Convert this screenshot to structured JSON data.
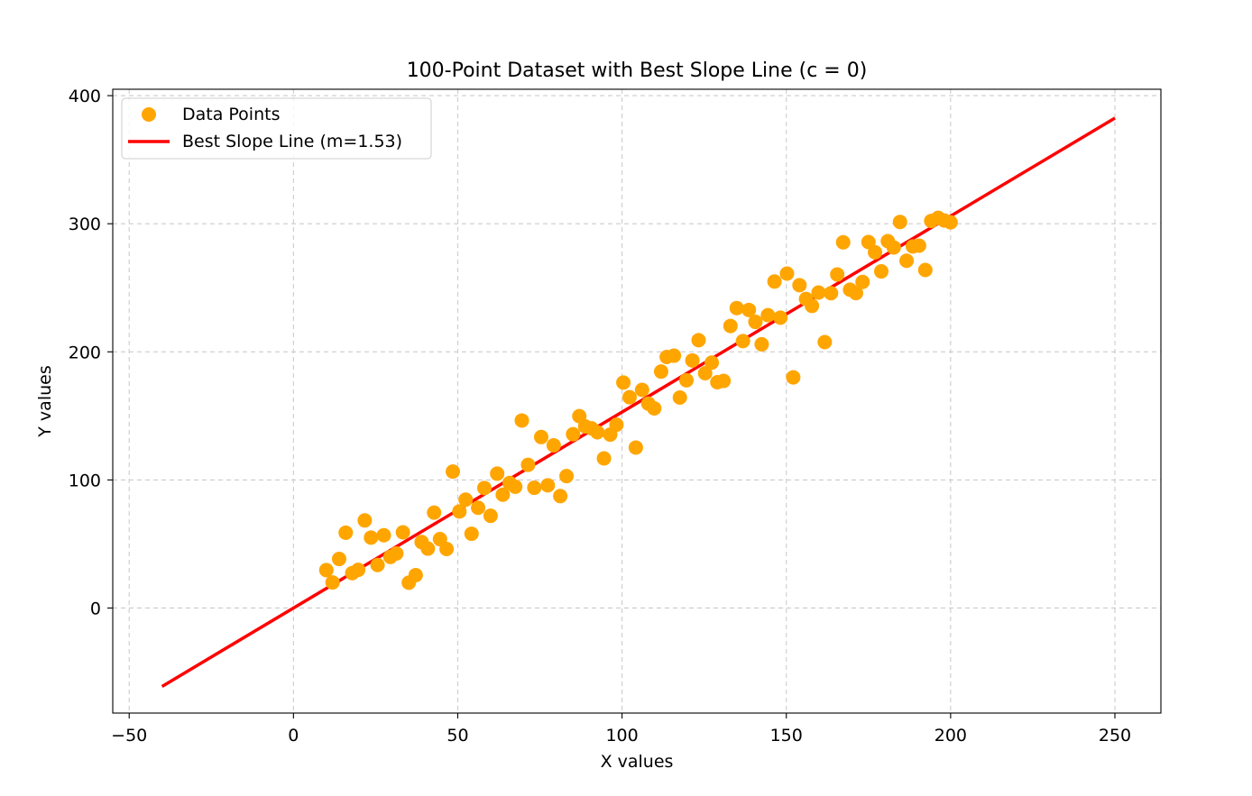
{
  "chart_data": {
    "type": "scatter",
    "title": "100-Point Dataset with Best Slope Line (c = 0)",
    "xlabel": "X values",
    "ylabel": "Y values",
    "xlim": [
      -55,
      264
    ],
    "ylim": [
      -82,
      405
    ],
    "xticks": [
      -50,
      0,
      50,
      100,
      150,
      200,
      250
    ],
    "yticks": [
      0,
      100,
      200,
      300,
      400
    ],
    "xtick_labels": [
      "−50",
      "0",
      "50",
      "100",
      "150",
      "200",
      "250"
    ],
    "ytick_labels": [
      "0",
      "100",
      "200",
      "300",
      "400"
    ],
    "grid": true,
    "legend_position": "top-left",
    "series": [
      {
        "name": "Data Points",
        "type": "scatter",
        "color": "#FFA500",
        "points": [
          [
            10.0,
            29.6
          ],
          [
            11.9,
            20.0
          ],
          [
            13.9,
            38.3
          ],
          [
            15.9,
            58.8
          ],
          [
            17.9,
            27.3
          ],
          [
            19.7,
            29.8
          ],
          [
            21.7,
            68.4
          ],
          [
            23.6,
            55.0
          ],
          [
            25.6,
            33.6
          ],
          [
            27.5,
            56.8
          ],
          [
            29.5,
            39.9
          ],
          [
            31.3,
            42.6
          ],
          [
            33.3,
            59.1
          ],
          [
            35.1,
            19.8
          ],
          [
            37.2,
            25.7
          ],
          [
            39.0,
            51.5
          ],
          [
            40.9,
            46.4
          ],
          [
            42.8,
            74.5
          ],
          [
            44.6,
            53.8
          ],
          [
            46.6,
            46.1
          ],
          [
            48.5,
            106.5
          ],
          [
            50.5,
            75.4
          ],
          [
            52.4,
            84.6
          ],
          [
            54.2,
            58.0
          ],
          [
            56.2,
            78.3
          ],
          [
            58.1,
            93.7
          ],
          [
            60.0,
            72.0
          ],
          [
            62.0,
            104.9
          ],
          [
            63.7,
            88.5
          ],
          [
            65.8,
            97.6
          ],
          [
            67.5,
            94.7
          ],
          [
            69.5,
            146.4
          ],
          [
            71.4,
            111.8
          ],
          [
            73.3,
            93.9
          ],
          [
            75.4,
            133.5
          ],
          [
            77.4,
            95.8
          ],
          [
            79.2,
            127.0
          ],
          [
            81.2,
            87.4
          ],
          [
            83.1,
            103.0
          ],
          [
            85.1,
            135.7
          ],
          [
            87.0,
            149.8
          ],
          [
            88.8,
            141.8
          ],
          [
            90.7,
            140.3
          ],
          [
            92.5,
            137.2
          ],
          [
            94.5,
            116.8
          ],
          [
            96.4,
            135.4
          ],
          [
            98.3,
            143.1
          ],
          [
            100.4,
            176.0
          ],
          [
            102.3,
            164.6
          ],
          [
            104.2,
            125.3
          ],
          [
            106.1,
            170.3
          ],
          [
            108.0,
            159.6
          ],
          [
            109.8,
            155.9
          ],
          [
            111.9,
            184.6
          ],
          [
            113.6,
            196.0
          ],
          [
            115.8,
            197.0
          ],
          [
            117.6,
            164.3
          ],
          [
            119.6,
            177.8
          ],
          [
            121.4,
            193.3
          ],
          [
            123.3,
            209.1
          ],
          [
            125.3,
            183.3
          ],
          [
            127.3,
            191.6
          ],
          [
            129.0,
            176.3
          ],
          [
            130.9,
            177.3
          ],
          [
            133.0,
            220.2
          ],
          [
            134.9,
            234.2
          ],
          [
            136.8,
            208.4
          ],
          [
            138.6,
            232.7
          ],
          [
            140.6,
            223.4
          ],
          [
            142.5,
            205.9
          ],
          [
            144.4,
            228.6
          ],
          [
            146.4,
            254.9
          ],
          [
            148.2,
            226.7
          ],
          [
            150.2,
            261.1
          ],
          [
            152.1,
            180.1
          ],
          [
            154.0,
            252.0
          ],
          [
            156.0,
            241.3
          ],
          [
            157.8,
            235.9
          ],
          [
            159.8,
            246.3
          ],
          [
            161.7,
            207.6
          ],
          [
            163.6,
            245.8
          ],
          [
            165.5,
            260.4
          ],
          [
            167.3,
            285.5
          ],
          [
            169.4,
            248.5
          ],
          [
            171.2,
            245.9
          ],
          [
            173.2,
            254.6
          ],
          [
            175.0,
            285.7
          ],
          [
            177.0,
            277.7
          ],
          [
            178.9,
            262.8
          ],
          [
            180.9,
            286.4
          ],
          [
            182.7,
            281.5
          ],
          [
            184.6,
            301.4
          ],
          [
            186.6,
            271.1
          ],
          [
            188.5,
            282.3
          ],
          [
            190.4,
            282.9
          ],
          [
            192.3,
            263.9
          ],
          [
            194.1,
            302.2
          ],
          [
            196.2,
            304.6
          ],
          [
            198.1,
            302.5
          ],
          [
            200.0,
            301.1
          ]
        ]
      },
      {
        "name": "Best Slope Line (m=1.53)",
        "type": "line",
        "color": "#FF0000",
        "x": [
          -40,
          250
        ],
        "y": [
          -61.2,
          382.5
        ]
      }
    ]
  }
}
